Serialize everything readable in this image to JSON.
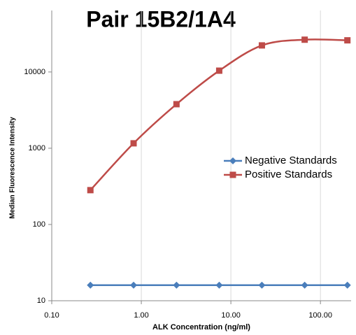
{
  "chart_data": {
    "type": "line",
    "title": "Pair 15B2/1A4",
    "x_label": "ALK Concentration (ng/ml)",
    "y_label": "Median Fluorescence Intensity",
    "x": [
      0.27,
      0.82,
      2.47,
      7.41,
      22.2,
      66.7,
      200
    ],
    "series": [
      {
        "name": "Negative Standards",
        "color": "#4a7ebb",
        "marker": "diamond",
        "values": [
          16,
          16,
          16,
          16,
          16,
          16,
          16
        ]
      },
      {
        "name": "Positive Standards",
        "color": "#be4b48",
        "marker": "square",
        "values": [
          282,
          1160,
          3780,
          10400,
          22300,
          26500,
          26000
        ]
      }
    ],
    "xscale": "log",
    "yscale": "log",
    "xlim": [
      0.1,
      220
    ],
    "ylim": [
      10,
      64000
    ],
    "xticks": [
      {
        "value": 0.1,
        "label": "0.10"
      },
      {
        "value": 1,
        "label": "1.00"
      },
      {
        "value": 10,
        "label": "10.00"
      },
      {
        "value": 100,
        "label": "100.00"
      }
    ],
    "yticks": [
      10,
      100,
      1000,
      10000
    ],
    "grid": true,
    "legend": "right"
  }
}
